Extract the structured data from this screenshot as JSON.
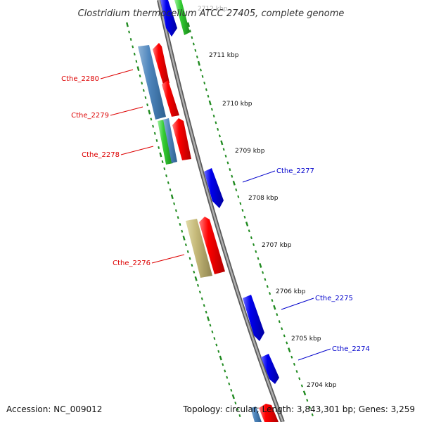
{
  "title": "Clostridium thermocellum ATCC 27405, complete genome",
  "footer": {
    "accession": "Accession: NC_009012",
    "summary": "Topology: circular; Length: 3,843,301 bp; Genes: 3,259"
  },
  "colors": {
    "backbone": "#888888",
    "forward_label": "#dd0000",
    "reverse_label": "#0000cc",
    "tick": "#1f8a1f"
  },
  "ruler": {
    "unit": "kbp",
    "labels": [
      "2711 kbp",
      "2710 kbp",
      "2709 kbp",
      "2708 kbp",
      "2707 kbp",
      "2706 kbp",
      "2705 kbp",
      "2704 kbp"
    ],
    "partial_top_label": "2712 kbp"
  },
  "genes": [
    {
      "id": "Cthe_2280",
      "label": "Cthe_2280",
      "strand": "forward"
    },
    {
      "id": "Cthe_2279",
      "label": "Cthe_2279",
      "strand": "forward"
    },
    {
      "id": "Cthe_2278",
      "label": "Cthe_2278",
      "strand": "forward"
    },
    {
      "id": "Cthe_2277",
      "label": "Cthe_2277",
      "strand": "reverse"
    },
    {
      "id": "Cthe_2276",
      "label": "Cthe_2276",
      "strand": "forward"
    },
    {
      "id": "Cthe_2275",
      "label": "Cthe_2275",
      "strand": "reverse"
    },
    {
      "id": "Cthe_2274",
      "label": "Cthe_2274",
      "strand": "reverse"
    }
  ]
}
